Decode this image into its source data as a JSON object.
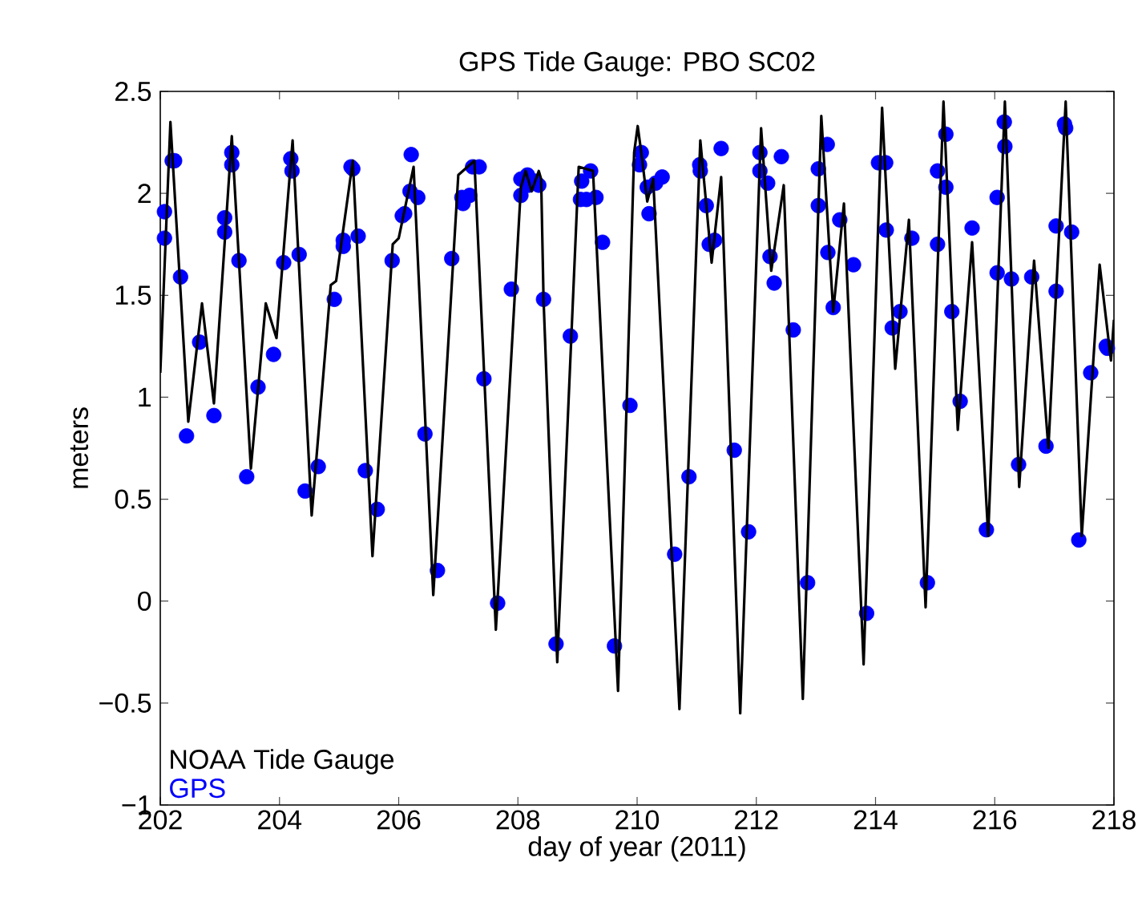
{
  "chart_data": {
    "type": "line",
    "title": "GPS Tide Gauge: PBO SC02",
    "xlabel": "day of year (2011)",
    "ylabel": "meters",
    "xlim": [
      202,
      218
    ],
    "xticks": [
      202,
      204,
      206,
      208,
      210,
      212,
      214,
      216,
      218
    ],
    "ylim": [
      -1,
      2.5
    ],
    "yticks": [
      {
        "value": -1,
        "label": "−1"
      },
      {
        "value": -0.5,
        "label": "−0.5"
      },
      0,
      0.5,
      1,
      1.5,
      2,
      2.5
    ],
    "legend": "bottom left",
    "series": [
      {
        "name": "NOAA Tide Gauge",
        "color": "#000000",
        "marker": "none",
        "line_style": "solid",
        "x": [
          202.0,
          202.17,
          202.47,
          202.7,
          202.9,
          203.2,
          203.52,
          203.77,
          203.95,
          204.22,
          204.54,
          204.86,
          204.95,
          205.23,
          205.56,
          205.9,
          206.0,
          206.25,
          206.58,
          207.0,
          207.27,
          207.63,
          208.05,
          208.13,
          208.23,
          208.35,
          208.39,
          208.43,
          208.66,
          209.02,
          209.26,
          209.68,
          209.95,
          210.01,
          210.07,
          210.17,
          210.27,
          210.71,
          211.06,
          211.25,
          211.41,
          211.73,
          212.08,
          212.25,
          212.46,
          212.78,
          213.09,
          213.29,
          213.47,
          213.8,
          214.11,
          214.33,
          214.56,
          214.84,
          215.14,
          215.38,
          215.62,
          215.89,
          216.17,
          216.41,
          216.66,
          216.9,
          217.19,
          217.46,
          217.76,
          217.95,
          218.0
        ],
        "values": [
          1.12,
          2.35,
          0.88,
          1.46,
          0.97,
          2.28,
          0.65,
          1.46,
          1.29,
          2.26,
          0.42,
          1.55,
          1.57,
          2.16,
          0.22,
          1.75,
          1.78,
          2.13,
          0.03,
          2.09,
          2.16,
          -0.14,
          2.03,
          2.11,
          2.01,
          2.11,
          2.07,
          1.48,
          -0.3,
          2.13,
          2.11,
          -0.44,
          2.2,
          2.33,
          2.2,
          1.96,
          2.07,
          -0.53,
          2.26,
          1.66,
          2.08,
          -0.55,
          2.32,
          1.62,
          2.04,
          -0.48,
          2.38,
          1.42,
          1.95,
          -0.31,
          2.42,
          1.14,
          1.87,
          -0.03,
          2.45,
          0.84,
          1.76,
          0.32,
          2.45,
          0.56,
          1.67,
          0.75,
          2.45,
          0.32,
          1.65,
          1.18,
          1.38
        ]
      },
      {
        "name": "GPS",
        "type": "scatter",
        "color": "#0000ff",
        "marker": "circle",
        "x": [
          202.07,
          202.07,
          202.2,
          202.24,
          202.34,
          202.44,
          202.66,
          202.9,
          203.08,
          203.08,
          203.2,
          203.2,
          203.32,
          203.45,
          203.64,
          203.9,
          204.07,
          204.19,
          204.21,
          204.33,
          204.43,
          204.65,
          204.92,
          205.07,
          205.07,
          205.2,
          205.23,
          205.32,
          205.44,
          205.64,
          205.89,
          206.06,
          206.1,
          206.21,
          206.19,
          206.32,
          206.44,
          206.65,
          206.89,
          207.06,
          207.08,
          207.19,
          207.24,
          207.35,
          207.43,
          207.66,
          207.89,
          208.05,
          208.05,
          208.16,
          208.18,
          208.28,
          208.35,
          208.43,
          208.64,
          208.88,
          209.05,
          209.07,
          209.15,
          209.22,
          209.31,
          209.42,
          209.62,
          209.88,
          210.07,
          210.04,
          210.2,
          210.17,
          210.31,
          210.42,
          210.63,
          210.87,
          211.05,
          211.06,
          211.16,
          211.21,
          211.3,
          211.41,
          211.63,
          211.87,
          212.06,
          212.06,
          212.19,
          212.23,
          212.3,
          212.42,
          212.62,
          212.86,
          213.04,
          213.04,
          213.19,
          213.2,
          213.29,
          213.4,
          213.63,
          213.85,
          214.05,
          214.17,
          214.18,
          214.28,
          214.41,
          214.61,
          214.87,
          215.04,
          215.04,
          215.18,
          215.18,
          215.28,
          215.42,
          215.62,
          215.86,
          216.04,
          216.04,
          216.16,
          216.17,
          216.28,
          216.4,
          216.62,
          216.86,
          217.03,
          217.03,
          217.17,
          217.19,
          217.29,
          217.41,
          217.61,
          217.87,
          217.89
        ],
        "values": [
          1.91,
          1.78,
          2.16,
          2.16,
          1.59,
          0.81,
          1.27,
          0.91,
          1.88,
          1.81,
          2.2,
          2.14,
          1.67,
          0.61,
          1.05,
          1.21,
          1.66,
          2.17,
          2.11,
          1.7,
          0.54,
          0.66,
          1.48,
          1.77,
          1.74,
          2.13,
          2.12,
          1.79,
          0.64,
          0.45,
          1.67,
          1.89,
          1.9,
          2.19,
          2.01,
          1.98,
          0.82,
          0.15,
          1.68,
          1.98,
          1.95,
          1.99,
          2.13,
          2.13,
          1.09,
          -0.01,
          1.53,
          2.07,
          1.99,
          2.09,
          2.04,
          2.06,
          2.04,
          1.48,
          -0.21,
          1.3,
          1.97,
          2.06,
          1.97,
          2.11,
          1.98,
          1.76,
          -0.22,
          0.96,
          2.2,
          2.14,
          1.9,
          2.03,
          2.05,
          2.08,
          0.23,
          0.61,
          2.14,
          2.11,
          1.94,
          1.75,
          1.77,
          2.22,
          0.74,
          0.34,
          2.2,
          2.11,
          2.05,
          1.69,
          1.56,
          2.18,
          1.33,
          0.09,
          2.12,
          1.94,
          2.24,
          1.71,
          1.44,
          1.87,
          1.65,
          -0.06,
          2.15,
          2.15,
          1.82,
          1.34,
          1.42,
          1.78,
          0.09,
          2.11,
          1.75,
          2.29,
          2.03,
          1.42,
          0.98,
          1.83,
          0.35,
          1.98,
          1.61,
          2.35,
          2.23,
          1.58,
          0.67,
          1.59,
          0.76,
          1.52,
          1.84,
          2.34,
          2.32,
          1.81,
          0.3,
          1.12,
          1.25,
          1.24
        ]
      }
    ]
  }
}
